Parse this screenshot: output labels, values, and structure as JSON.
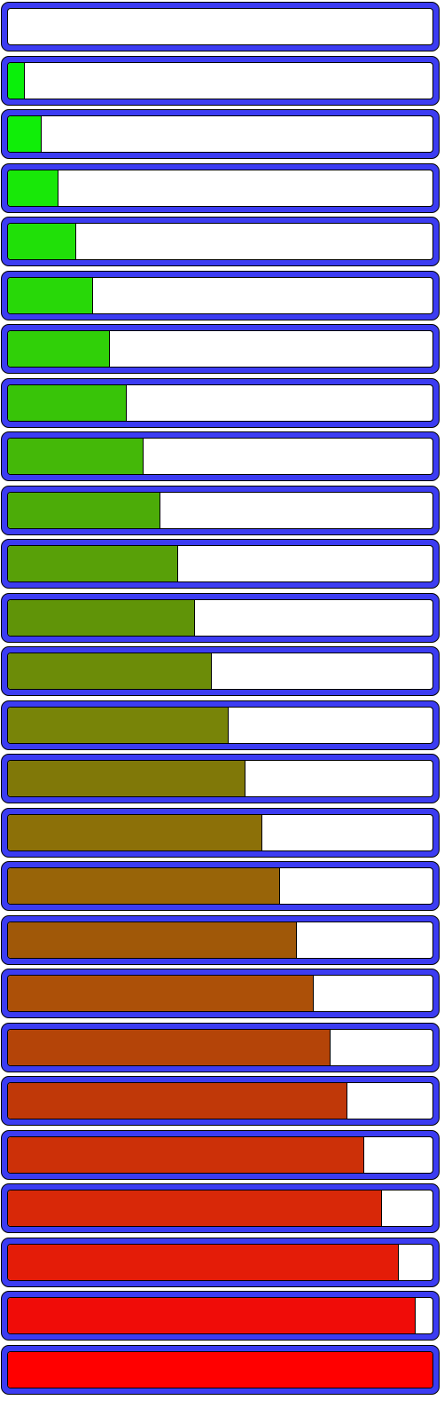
{
  "progress_bars": [
    {
      "fraction": 0.0,
      "fill_color": "#0af00a"
    },
    {
      "fraction": 0.04,
      "fill_color": "#0af00a"
    },
    {
      "fraction": 0.08,
      "fill_color": "#10ee08"
    },
    {
      "fraction": 0.12,
      "fill_color": "#18e808"
    },
    {
      "fraction": 0.16,
      "fill_color": "#20e008"
    },
    {
      "fraction": 0.2,
      "fill_color": "#28d808"
    },
    {
      "fraction": 0.24,
      "fill_color": "#30d008"
    },
    {
      "fraction": 0.28,
      "fill_color": "#38c408"
    },
    {
      "fraction": 0.32,
      "fill_color": "#44b808"
    },
    {
      "fraction": 0.36,
      "fill_color": "#4cac08"
    },
    {
      "fraction": 0.4,
      "fill_color": "#58a008"
    },
    {
      "fraction": 0.44,
      "fill_color": "#609408"
    },
    {
      "fraction": 0.48,
      "fill_color": "#6c8c08"
    },
    {
      "fraction": 0.52,
      "fill_color": "#788408"
    },
    {
      "fraction": 0.56,
      "fill_color": "#807808"
    },
    {
      "fraction": 0.6,
      "fill_color": "#8c7008"
    },
    {
      "fraction": 0.64,
      "fill_color": "#986408"
    },
    {
      "fraction": 0.68,
      "fill_color": "#a05808"
    },
    {
      "fraction": 0.72,
      "fill_color": "#ac5008"
    },
    {
      "fraction": 0.76,
      "fill_color": "#b44408"
    },
    {
      "fraction": 0.8,
      "fill_color": "#c03808"
    },
    {
      "fraction": 0.84,
      "fill_color": "#cc3008"
    },
    {
      "fraction": 0.88,
      "fill_color": "#d82808"
    },
    {
      "fraction": 0.92,
      "fill_color": "#e41c08"
    },
    {
      "fraction": 0.96,
      "fill_color": "#f00c08"
    },
    {
      "fraction": 1.0,
      "fill_color": "#ff0000"
    }
  ],
  "frame_color": "#3c3cf2"
}
